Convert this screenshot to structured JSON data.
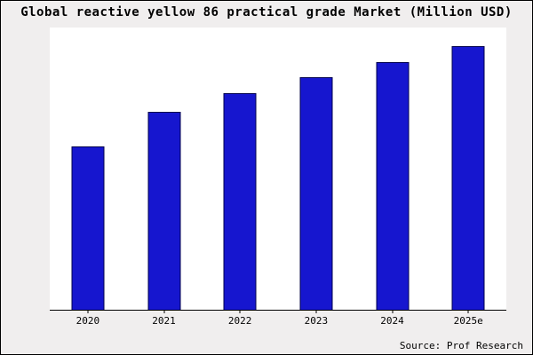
{
  "chart_data": {
    "type": "bar",
    "title": "Global reactive yellow 86 practical grade Market (Million USD)",
    "categories": [
      "2020",
      "2021",
      "2022",
      "2023",
      "2024",
      "2025e"
    ],
    "values": [
      62,
      75,
      82,
      88,
      94,
      100
    ],
    "xlabel": "",
    "ylabel": "",
    "ylim": [
      0,
      107
    ],
    "grid": false,
    "legend": false,
    "bar_color": "#1616cf",
    "bar_border_color": "#00004d",
    "background": "#f0eeee",
    "plot_background": "#ffffff"
  },
  "source": "Source: Prof Research"
}
